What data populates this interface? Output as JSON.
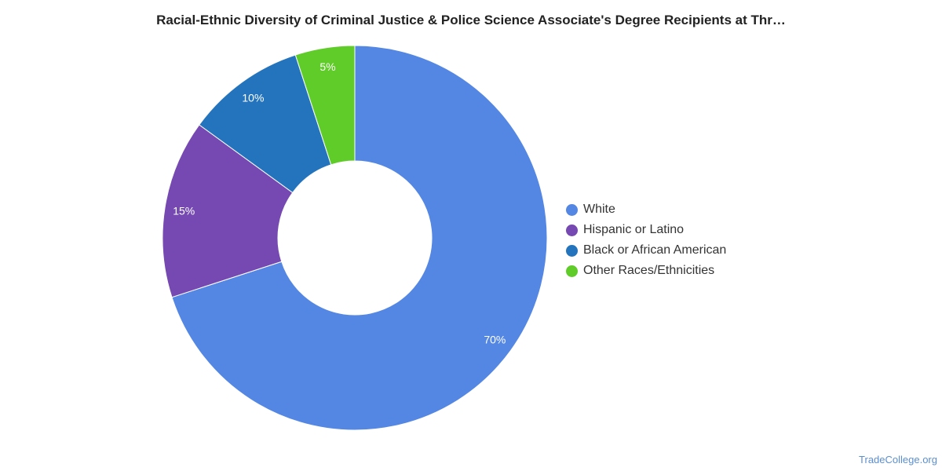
{
  "chart_data": {
    "type": "pie",
    "title": "Racial-Ethnic Diversity of Criminal Justice & Police Science Associate's Degree Recipients at Thr…",
    "donut": true,
    "categories": [
      "White",
      "Hispanic or Latino",
      "Black or African American",
      "Other Races/Ethnicities"
    ],
    "values": [
      70,
      15,
      10,
      5
    ],
    "value_labels": [
      "70%",
      "15%",
      "10%",
      "5%"
    ],
    "colors": [
      "#5387e3",
      "#7549b1",
      "#2474bd",
      "#60cc29"
    ],
    "legend_position": "right"
  },
  "credit": "TradeCollege.org"
}
